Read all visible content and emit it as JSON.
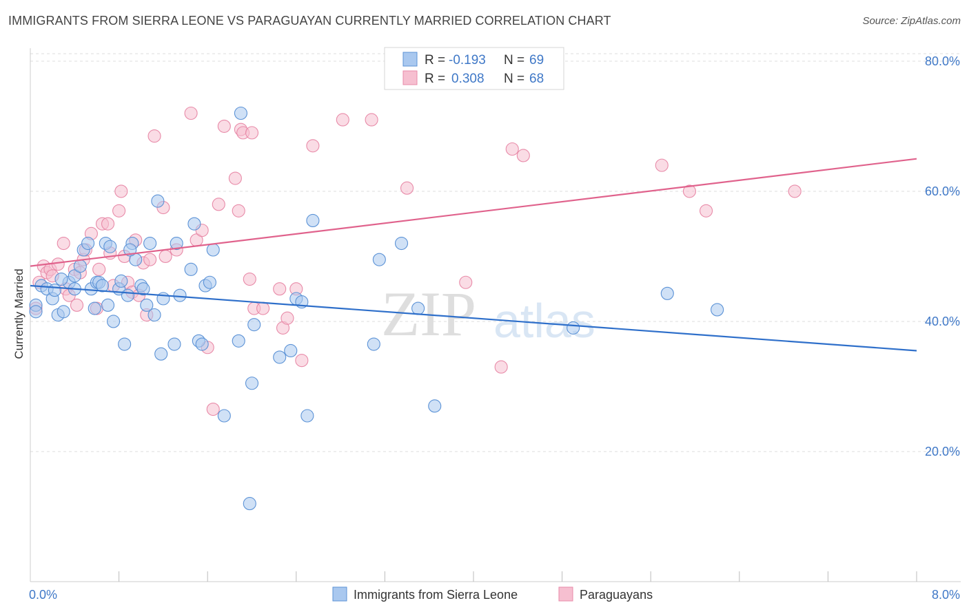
{
  "header": {
    "title": "IMMIGRANTS FROM SIERRA LEONE VS PARAGUAYAN CURRENTLY MARRIED CORRELATION CHART",
    "source": "Source: ZipAtlas.com"
  },
  "watermark": {
    "zip": "ZIP",
    "atlas": "atlas"
  },
  "colors": {
    "blue_fill": "#a9c8ef",
    "blue_stroke": "#5b92d6",
    "blue_line": "#2e6fca",
    "pink_fill": "#f6bfd0",
    "pink_stroke": "#e88aa8",
    "pink_line": "#e0628c",
    "tick_text": "#3f78c7",
    "grid": "#dddddd"
  },
  "legend": {
    "rows": [
      {
        "r_label": "R =",
        "r_value": "-0.193",
        "n_label": "N =",
        "n_value": "69"
      },
      {
        "r_label": "R =",
        "r_value": "0.308",
        "n_label": "N =",
        "n_value": "68"
      }
    ]
  },
  "chart_data": {
    "type": "scatter",
    "title": "IMMIGRANTS FROM SIERRA LEONE VS PARAGUAYAN CURRENTLY MARRIED CORRELATION CHART",
    "xlabel": "",
    "ylabel": "Currently Married",
    "xlim": [
      0,
      8
    ],
    "ylim": [
      0,
      82
    ],
    "x_tick_labels": [
      "0.0%",
      "8.0%"
    ],
    "y_ticks": [
      20,
      40,
      60,
      80
    ],
    "y_tick_labels": [
      "20.0%",
      "40.0%",
      "60.0%",
      "80.0%"
    ],
    "grid": true,
    "legend_position": "top-center",
    "series": [
      {
        "name": "Immigrants from Sierra Leone",
        "color": "#5b92d6",
        "trend": {
          "x": [
            0,
            8
          ],
          "y": [
            45.5,
            35.5
          ]
        },
        "points": [
          [
            0.05,
            42.5
          ],
          [
            0.05,
            41.5
          ],
          [
            0.1,
            45.5
          ],
          [
            0.15,
            45.0
          ],
          [
            0.2,
            43.5
          ],
          [
            0.22,
            44.8
          ],
          [
            0.25,
            41.0
          ],
          [
            0.3,
            41.5
          ],
          [
            0.35,
            46.0
          ],
          [
            0.4,
            45.0
          ],
          [
            0.4,
            47.0
          ],
          [
            0.45,
            48.5
          ],
          [
            0.48,
            51.0
          ],
          [
            0.52,
            52.0
          ],
          [
            0.55,
            45.0
          ],
          [
            0.58,
            42.0
          ],
          [
            0.6,
            46.0
          ],
          [
            0.62,
            46.0
          ],
          [
            0.65,
            45.5
          ],
          [
            0.68,
            52.0
          ],
          [
            0.7,
            42.5
          ],
          [
            0.72,
            51.5
          ],
          [
            0.75,
            40.0
          ],
          [
            0.8,
            45.0
          ],
          [
            0.82,
            46.2
          ],
          [
            0.85,
            36.5
          ],
          [
            0.88,
            44.0
          ],
          [
            0.92,
            52.0
          ],
          [
            0.95,
            49.5
          ],
          [
            1.0,
            45.5
          ],
          [
            1.02,
            45.0
          ],
          [
            1.05,
            42.5
          ],
          [
            1.08,
            52.0
          ],
          [
            1.12,
            41.0
          ],
          [
            1.15,
            58.5
          ],
          [
            1.18,
            35.0
          ],
          [
            1.2,
            43.5
          ],
          [
            1.3,
            36.5
          ],
          [
            1.32,
            52.0
          ],
          [
            1.35,
            44.0
          ],
          [
            1.45,
            48.0
          ],
          [
            1.48,
            55.0
          ],
          [
            1.52,
            37.0
          ],
          [
            1.55,
            36.5
          ],
          [
            1.58,
            45.5
          ],
          [
            1.62,
            46.0
          ],
          [
            1.65,
            51.0
          ],
          [
            1.75,
            25.5
          ],
          [
            1.88,
            37.0
          ],
          [
            1.9,
            72.0
          ],
          [
            1.98,
            12.0
          ],
          [
            2.0,
            30.5
          ],
          [
            2.02,
            39.5
          ],
          [
            2.25,
            34.5
          ],
          [
            2.35,
            35.5
          ],
          [
            2.4,
            43.5
          ],
          [
            2.45,
            43.0
          ],
          [
            2.5,
            25.5
          ],
          [
            2.55,
            55.5
          ],
          [
            3.1,
            36.5
          ],
          [
            3.15,
            49.5
          ],
          [
            3.35,
            52.0
          ],
          [
            3.5,
            42.0
          ],
          [
            3.65,
            27.0
          ],
          [
            4.9,
            39.0
          ],
          [
            5.75,
            44.3
          ],
          [
            6.2,
            41.8
          ],
          [
            0.28,
            46.5
          ],
          [
            0.9,
            51.0
          ]
        ]
      },
      {
        "name": "Paraguayans",
        "color": "#e88aa8",
        "trend": {
          "x": [
            0,
            8
          ],
          "y": [
            48.5,
            65.0
          ]
        },
        "points": [
          [
            0.05,
            42.0
          ],
          [
            0.08,
            46.0
          ],
          [
            0.12,
            48.5
          ],
          [
            0.15,
            47.5
          ],
          [
            0.18,
            48.0
          ],
          [
            0.2,
            47.0
          ],
          [
            0.25,
            48.8
          ],
          [
            0.3,
            52.0
          ],
          [
            0.32,
            45.0
          ],
          [
            0.35,
            44.0
          ],
          [
            0.4,
            48.0
          ],
          [
            0.42,
            42.5
          ],
          [
            0.45,
            47.5
          ],
          [
            0.48,
            49.5
          ],
          [
            0.5,
            51.0
          ],
          [
            0.55,
            53.5
          ],
          [
            0.6,
            42.0
          ],
          [
            0.62,
            48.0
          ],
          [
            0.65,
            55.0
          ],
          [
            0.7,
            55.0
          ],
          [
            0.72,
            50.5
          ],
          [
            0.75,
            45.5
          ],
          [
            0.8,
            57.0
          ],
          [
            0.82,
            60.0
          ],
          [
            0.85,
            50.0
          ],
          [
            0.88,
            46.0
          ],
          [
            0.92,
            44.5
          ],
          [
            0.95,
            52.5
          ],
          [
            0.98,
            44.0
          ],
          [
            1.02,
            49.0
          ],
          [
            1.05,
            41.0
          ],
          [
            1.08,
            49.5
          ],
          [
            1.12,
            68.5
          ],
          [
            1.2,
            57.5
          ],
          [
            1.22,
            50.0
          ],
          [
            1.32,
            51.0
          ],
          [
            1.45,
            72.0
          ],
          [
            1.5,
            52.5
          ],
          [
            1.55,
            54.0
          ],
          [
            1.6,
            36.0
          ],
          [
            1.65,
            26.5
          ],
          [
            1.7,
            58.0
          ],
          [
            1.75,
            70.0
          ],
          [
            1.85,
            62.0
          ],
          [
            1.88,
            57.0
          ],
          [
            1.9,
            69.5
          ],
          [
            1.92,
            69.0
          ],
          [
            1.98,
            46.5
          ],
          [
            2.0,
            69.0
          ],
          [
            2.02,
            42.0
          ],
          [
            2.1,
            42.0
          ],
          [
            2.25,
            45.0
          ],
          [
            2.28,
            39.0
          ],
          [
            2.32,
            40.5
          ],
          [
            2.4,
            45.0
          ],
          [
            2.45,
            34.0
          ],
          [
            2.55,
            67.0
          ],
          [
            2.82,
            71.0
          ],
          [
            3.08,
            71.0
          ],
          [
            3.4,
            60.5
          ],
          [
            3.93,
            46.0
          ],
          [
            4.25,
            33.0
          ],
          [
            4.35,
            66.5
          ],
          [
            4.45,
            65.5
          ],
          [
            5.7,
            64.0
          ],
          [
            5.95,
            60.0
          ],
          [
            6.1,
            57.0
          ],
          [
            6.9,
            60.0
          ]
        ]
      }
    ]
  },
  "bottom_legend": {
    "items": [
      {
        "label": "Immigrants from Sierra Leone"
      },
      {
        "label": "Paraguayans"
      }
    ]
  }
}
